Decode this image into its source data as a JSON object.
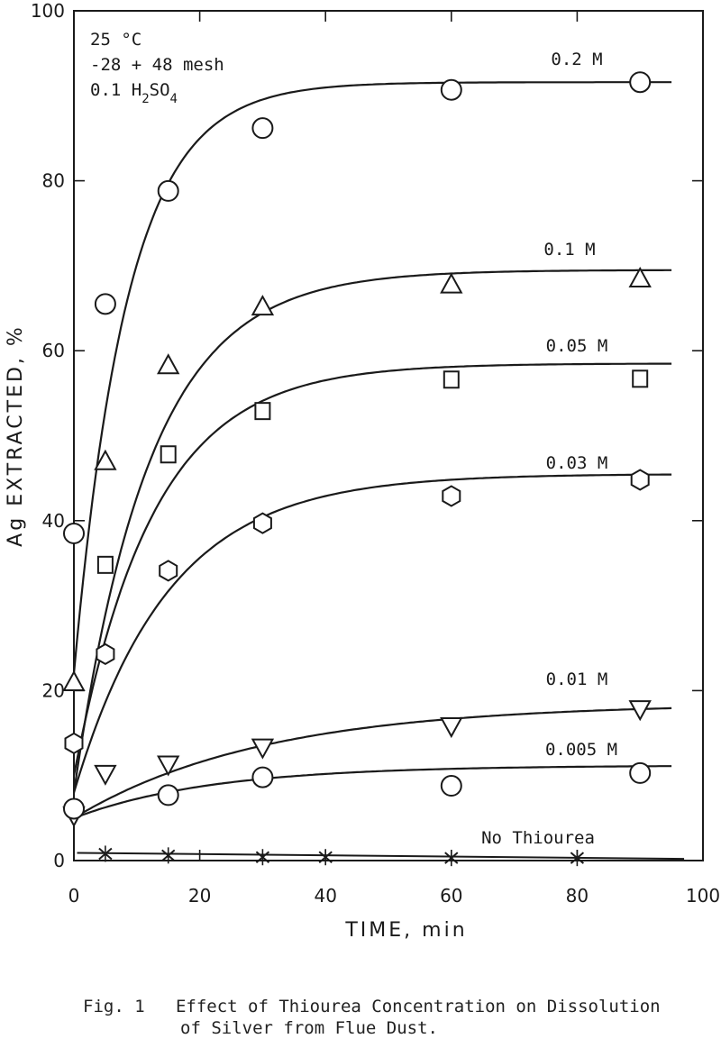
{
  "chart_data": {
    "type": "line",
    "xlabel": "TIME, min",
    "ylabel": "Ag EXTRACTED, %",
    "xlim": [
      0,
      100
    ],
    "ylim": [
      0,
      100
    ],
    "xticks": [
      "0",
      "20",
      "40",
      "60",
      "80",
      "100"
    ],
    "yticks": [
      "0",
      "20",
      "40",
      "60",
      "80",
      "100"
    ],
    "conditions": [
      "25 °C",
      "-28 + 48 mesh",
      "0.1 H2SO4"
    ],
    "series": [
      {
        "name": "0.2 M",
        "marker": "circle",
        "x": [
          0,
          5,
          15,
          30,
          60,
          90
        ],
        "y": [
          38.5,
          65.5,
          78.8,
          86.2,
          90.7,
          91.6
        ]
      },
      {
        "name": "0.1 M",
        "marker": "triangle-up",
        "x": [
          0,
          5,
          15,
          30,
          60,
          90
        ],
        "y": [
          21,
          47,
          58.3,
          65.2,
          67.8,
          68.5
        ]
      },
      {
        "name": "0.05 M",
        "marker": "square",
        "x": [
          5,
          15,
          30,
          60,
          90
        ],
        "y": [
          34.8,
          47.8,
          52.9,
          56.6,
          56.7
        ]
      },
      {
        "name": "0.03 M",
        "marker": "hexagon",
        "x": [
          0,
          5,
          15,
          30,
          60,
          90
        ],
        "y": [
          13.8,
          24.3,
          34.1,
          39.7,
          42.9,
          44.8
        ]
      },
      {
        "name": "0.01 M",
        "marker": "triangle-down",
        "x": [
          0,
          5,
          15,
          30,
          60,
          90
        ],
        "y": [
          5.3,
          10.2,
          11.3,
          13.3,
          15.8,
          17.8
        ]
      },
      {
        "name": "0.005 M",
        "marker": "circle",
        "x": [
          0,
          15,
          30,
          60,
          90
        ],
        "y": [
          6.1,
          7.7,
          9.8,
          8.8,
          10.3
        ]
      },
      {
        "name": "No Thiourea",
        "marker": "x",
        "x": [
          5,
          15,
          30,
          40,
          60,
          80
        ],
        "y": [
          0.8,
          0.6,
          0.4,
          0.4,
          0.3,
          0.3
        ]
      }
    ]
  },
  "caption": {
    "line1": "Fig. 1   Effect of Thiourea Concentration on Dissolution",
    "line2": "of Silver from Flue Dust."
  }
}
